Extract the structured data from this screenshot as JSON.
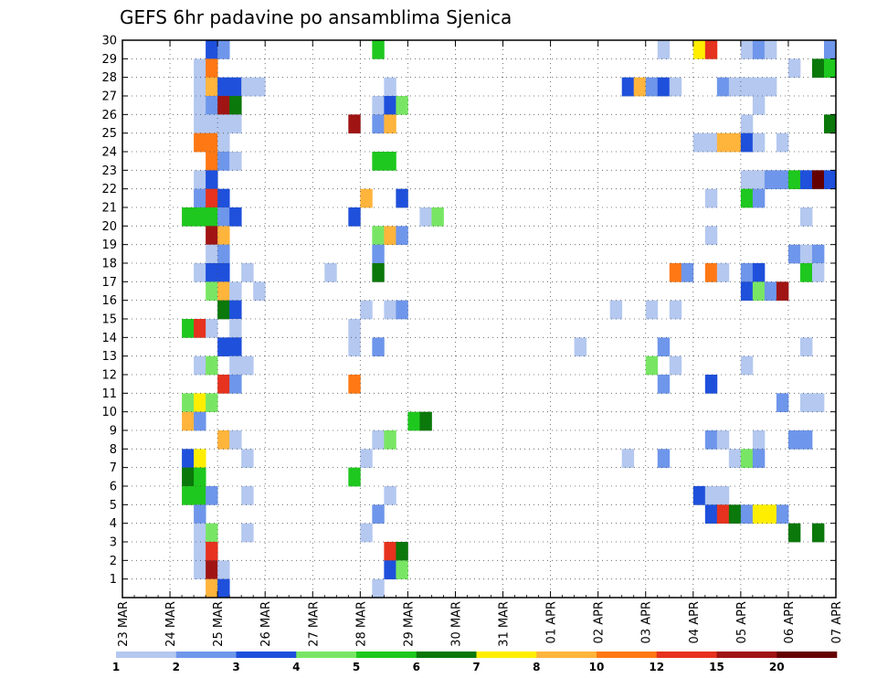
{
  "chart_data": {
    "type": "heatmap",
    "title": "GEFS 6hr padavine po ansamblima Sjenica",
    "x_tick_labels": [
      "23 MAR",
      "24 MAR",
      "25 MAR",
      "26 MAR",
      "27 MAR",
      "28 MAR",
      "29 MAR",
      "30 MAR",
      "31 MAR",
      "01 APR",
      "02 APR",
      "03 APR",
      "04 APR",
      "05 APR",
      "06 APR",
      "07 APR"
    ],
    "y_tick_labels": [
      "1",
      "2",
      "3",
      "4",
      "5",
      "6",
      "7",
      "8",
      "9",
      "10",
      "11",
      "12",
      "13",
      "14",
      "15",
      "16",
      "17",
      "18",
      "19",
      "20",
      "21",
      "22",
      "23",
      "24",
      "25",
      "26",
      "27",
      "28",
      "29",
      "30"
    ],
    "x_range_steps": [
      0,
      60
    ],
    "y_range_members": [
      0,
      30
    ],
    "steps_per_day": 4,
    "colorbar": {
      "labels": [
        "1",
        "2",
        "3",
        "4",
        "5",
        "6",
        "7",
        "8",
        "10",
        "12",
        "15",
        "20"
      ],
      "colors": [
        "#b4c8f0",
        "#6e96eb",
        "#1e50dc",
        "#78e664",
        "#1ec81e",
        "#0a780a",
        "#ffee00",
        "#ffb43c",
        "#ff7814",
        "#e6321e",
        "#a01414",
        "#640000"
      ]
    },
    "cells": [
      [
        30,
        7,
        2
      ],
      [
        30,
        8,
        1
      ],
      [
        30,
        21,
        4
      ],
      [
        30,
        45,
        0
      ],
      [
        30,
        48,
        6
      ],
      [
        30,
        49,
        9
      ],
      [
        30,
        52,
        0
      ],
      [
        30,
        53,
        1
      ],
      [
        30,
        54,
        0
      ],
      [
        30,
        59,
        1
      ],
      [
        29,
        6,
        0
      ],
      [
        29,
        7,
        8
      ],
      [
        29,
        56,
        0
      ],
      [
        29,
        58,
        5
      ],
      [
        29,
        59,
        4
      ],
      [
        28,
        6,
        0
      ],
      [
        28,
        7,
        7
      ],
      [
        28,
        8,
        2
      ],
      [
        28,
        9,
        2
      ],
      [
        28,
        10,
        0
      ],
      [
        28,
        11,
        0
      ],
      [
        28,
        22,
        0
      ],
      [
        28,
        42,
        2
      ],
      [
        28,
        43,
        7
      ],
      [
        28,
        44,
        1
      ],
      [
        28,
        45,
        2
      ],
      [
        28,
        46,
        0
      ],
      [
        28,
        50,
        1
      ],
      [
        28,
        51,
        0
      ],
      [
        28,
        52,
        0
      ],
      [
        28,
        53,
        0
      ],
      [
        28,
        54,
        0
      ],
      [
        27,
        6,
        0
      ],
      [
        27,
        7,
        1
      ],
      [
        27,
        8,
        10
      ],
      [
        27,
        9,
        5
      ],
      [
        27,
        21,
        0
      ],
      [
        27,
        22,
        2
      ],
      [
        27,
        23,
        3
      ],
      [
        27,
        53,
        0
      ],
      [
        26,
        6,
        0
      ],
      [
        26,
        7,
        0
      ],
      [
        26,
        8,
        0
      ],
      [
        26,
        9,
        0
      ],
      [
        26,
        19,
        10
      ],
      [
        26,
        21,
        1
      ],
      [
        26,
        22,
        7
      ],
      [
        26,
        52,
        0
      ],
      [
        26,
        59,
        5
      ],
      [
        25,
        6,
        8
      ],
      [
        25,
        7,
        8
      ],
      [
        25,
        8,
        0
      ],
      [
        25,
        48,
        0
      ],
      [
        25,
        49,
        0
      ],
      [
        25,
        50,
        7
      ],
      [
        25,
        51,
        7
      ],
      [
        25,
        52,
        2
      ],
      [
        25,
        53,
        0
      ],
      [
        25,
        55,
        0
      ],
      [
        24,
        7,
        8
      ],
      [
        24,
        8,
        1
      ],
      [
        24,
        9,
        0
      ],
      [
        24,
        21,
        4
      ],
      [
        24,
        22,
        4
      ],
      [
        23,
        6,
        0
      ],
      [
        23,
        7,
        2
      ],
      [
        23,
        52,
        0
      ],
      [
        23,
        53,
        0
      ],
      [
        23,
        54,
        1
      ],
      [
        23,
        55,
        1
      ],
      [
        23,
        56,
        4
      ],
      [
        23,
        57,
        2
      ],
      [
        23,
        58,
        11
      ],
      [
        23,
        59,
        2
      ],
      [
        22,
        6,
        1
      ],
      [
        22,
        7,
        9
      ],
      [
        22,
        8,
        2
      ],
      [
        22,
        20,
        7
      ],
      [
        22,
        23,
        2
      ],
      [
        22,
        49,
        0
      ],
      [
        22,
        52,
        4
      ],
      [
        22,
        53,
        1
      ],
      [
        21,
        5,
        4
      ],
      [
        21,
        6,
        4
      ],
      [
        21,
        7,
        4
      ],
      [
        21,
        8,
        1
      ],
      [
        21,
        9,
        2
      ],
      [
        21,
        19,
        2
      ],
      [
        21,
        25,
        0
      ],
      [
        21,
        26,
        3
      ],
      [
        21,
        57,
        0
      ],
      [
        20,
        7,
        10
      ],
      [
        20,
        8,
        7
      ],
      [
        20,
        21,
        3
      ],
      [
        20,
        22,
        7
      ],
      [
        20,
        23,
        1
      ],
      [
        20,
        49,
        0
      ],
      [
        19,
        7,
        0
      ],
      [
        19,
        8,
        1
      ],
      [
        19,
        21,
        1
      ],
      [
        19,
        56,
        1
      ],
      [
        19,
        57,
        0
      ],
      [
        19,
        58,
        1
      ],
      [
        18,
        6,
        0
      ],
      [
        18,
        7,
        2
      ],
      [
        18,
        8,
        2
      ],
      [
        18,
        10,
        0
      ],
      [
        18,
        17,
        0
      ],
      [
        18,
        21,
        5
      ],
      [
        18,
        46,
        8
      ],
      [
        18,
        47,
        1
      ],
      [
        18,
        49,
        8
      ],
      [
        18,
        50,
        0
      ],
      [
        18,
        52,
        1
      ],
      [
        18,
        53,
        2
      ],
      [
        18,
        57,
        4
      ],
      [
        18,
        58,
        0
      ],
      [
        17,
        7,
        3
      ],
      [
        17,
        8,
        7
      ],
      [
        17,
        9,
        0
      ],
      [
        17,
        11,
        0
      ],
      [
        17,
        52,
        2
      ],
      [
        17,
        53,
        3
      ],
      [
        17,
        54,
        1
      ],
      [
        17,
        55,
        10
      ],
      [
        16,
        8,
        5
      ],
      [
        16,
        9,
        2
      ],
      [
        16,
        20,
        0
      ],
      [
        16,
        22,
        0
      ],
      [
        16,
        23,
        1
      ],
      [
        16,
        41,
        0
      ],
      [
        16,
        44,
        0
      ],
      [
        16,
        46,
        0
      ],
      [
        15,
        5,
        4
      ],
      [
        15,
        6,
        9
      ],
      [
        15,
        7,
        0
      ],
      [
        15,
        9,
        0
      ],
      [
        15,
        19,
        0
      ],
      [
        14,
        8,
        2
      ],
      [
        14,
        9,
        2
      ],
      [
        14,
        19,
        0
      ],
      [
        14,
        21,
        1
      ],
      [
        14,
        38,
        0
      ],
      [
        14,
        45,
        1
      ],
      [
        14,
        57,
        0
      ],
      [
        13,
        6,
        0
      ],
      [
        13,
        7,
        3
      ],
      [
        13,
        9,
        0
      ],
      [
        13,
        10,
        0
      ],
      [
        13,
        44,
        3
      ],
      [
        13,
        46,
        0
      ],
      [
        13,
        52,
        0
      ],
      [
        12,
        8,
        9
      ],
      [
        12,
        9,
        1
      ],
      [
        12,
        19,
        8
      ],
      [
        12,
        45,
        1
      ],
      [
        12,
        49,
        2
      ],
      [
        11,
        5,
        3
      ],
      [
        11,
        6,
        6
      ],
      [
        11,
        7,
        3
      ],
      [
        11,
        55,
        1
      ],
      [
        11,
        57,
        0
      ],
      [
        11,
        58,
        0
      ],
      [
        10,
        5,
        7
      ],
      [
        10,
        6,
        1
      ],
      [
        10,
        24,
        4
      ],
      [
        10,
        25,
        5
      ],
      [
        9,
        8,
        7
      ],
      [
        9,
        9,
        0
      ],
      [
        9,
        21,
        0
      ],
      [
        9,
        22,
        3
      ],
      [
        9,
        49,
        1
      ],
      [
        9,
        50,
        0
      ],
      [
        9,
        53,
        0
      ],
      [
        9,
        56,
        1
      ],
      [
        9,
        57,
        1
      ],
      [
        8,
        5,
        2
      ],
      [
        8,
        6,
        6
      ],
      [
        8,
        10,
        0
      ],
      [
        8,
        20,
        0
      ],
      [
        8,
        42,
        0
      ],
      [
        8,
        45,
        1
      ],
      [
        8,
        51,
        0
      ],
      [
        8,
        52,
        3
      ],
      [
        8,
        53,
        1
      ],
      [
        7,
        5,
        5
      ],
      [
        7,
        6,
        4
      ],
      [
        7,
        19,
        4
      ],
      [
        6,
        5,
        4
      ],
      [
        6,
        6,
        4
      ],
      [
        6,
        7,
        1
      ],
      [
        6,
        10,
        0
      ],
      [
        6,
        22,
        0
      ],
      [
        6,
        48,
        2
      ],
      [
        6,
        49,
        0
      ],
      [
        6,
        50,
        0
      ],
      [
        5,
        6,
        1
      ],
      [
        5,
        21,
        1
      ],
      [
        5,
        49,
        2
      ],
      [
        5,
        50,
        9
      ],
      [
        5,
        51,
        5
      ],
      [
        5,
        52,
        1
      ],
      [
        5,
        53,
        6
      ],
      [
        5,
        54,
        6
      ],
      [
        5,
        55,
        1
      ],
      [
        4,
        6,
        0
      ],
      [
        4,
        7,
        3
      ],
      [
        4,
        10,
        0
      ],
      [
        4,
        20,
        0
      ],
      [
        4,
        56,
        5
      ],
      [
        4,
        58,
        5
      ],
      [
        3,
        6,
        0
      ],
      [
        3,
        7,
        9
      ],
      [
        3,
        22,
        9
      ],
      [
        3,
        23,
        5
      ],
      [
        2,
        6,
        0
      ],
      [
        2,
        7,
        10
      ],
      [
        2,
        8,
        0
      ],
      [
        2,
        22,
        2
      ],
      [
        2,
        23,
        3
      ],
      [
        1,
        7,
        7
      ],
      [
        1,
        8,
        2
      ],
      [
        1,
        21,
        0
      ]
    ]
  }
}
